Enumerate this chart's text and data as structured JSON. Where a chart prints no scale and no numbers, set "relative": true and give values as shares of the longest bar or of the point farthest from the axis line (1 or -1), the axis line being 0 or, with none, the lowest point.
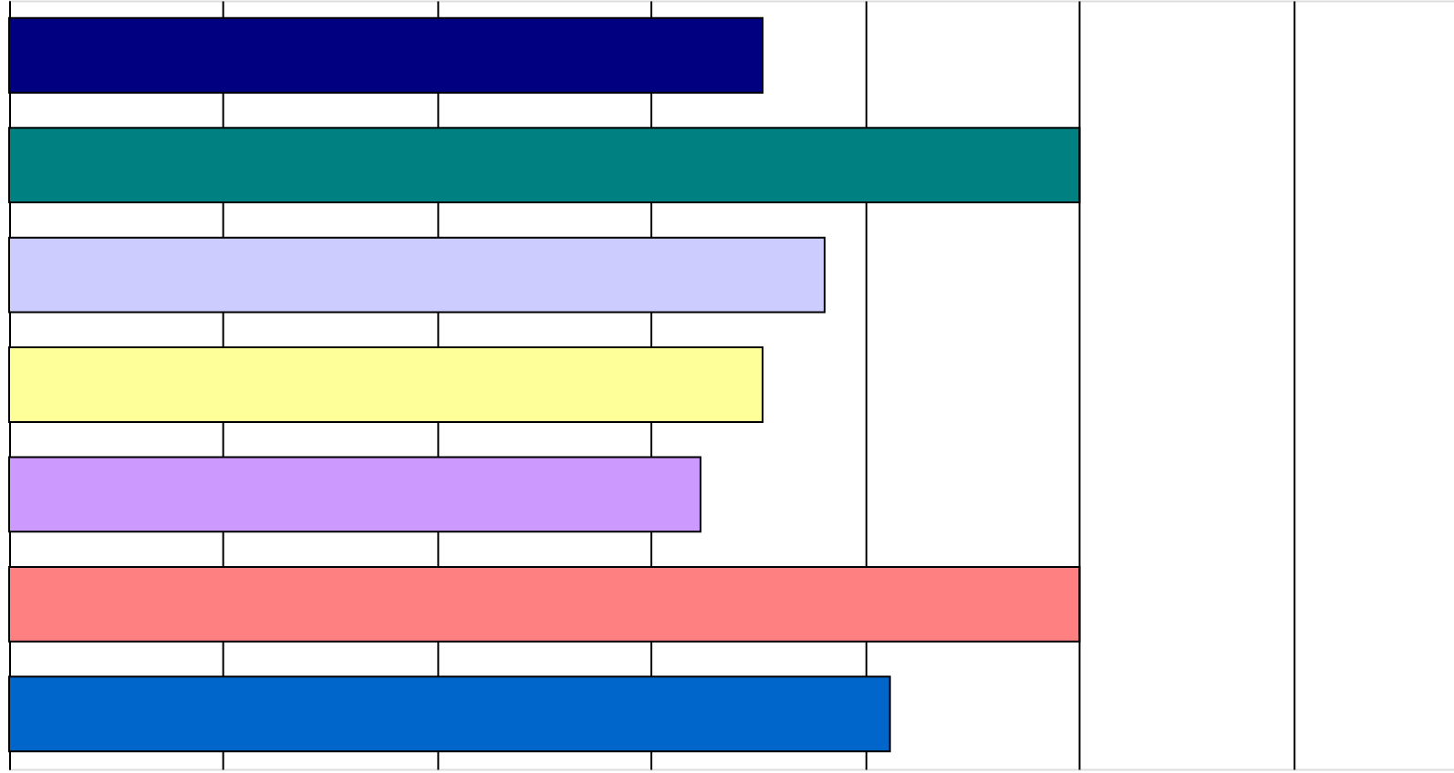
{
  "chart_data": {
    "type": "bar",
    "orientation": "horizontal",
    "relative": true,
    "grid": "x",
    "tick_labels": false,
    "categories": [
      null,
      null,
      null,
      null,
      null,
      null,
      null
    ],
    "values": [
      0.704,
      1,
      0.762,
      0.704,
      0.646,
      1,
      0.823
    ],
    "colors": [
      "#000080",
      "#008080",
      "#ccccff",
      "#ffff99",
      "#cc99ff",
      "#ff8080",
      "#0066cc"
    ]
  }
}
